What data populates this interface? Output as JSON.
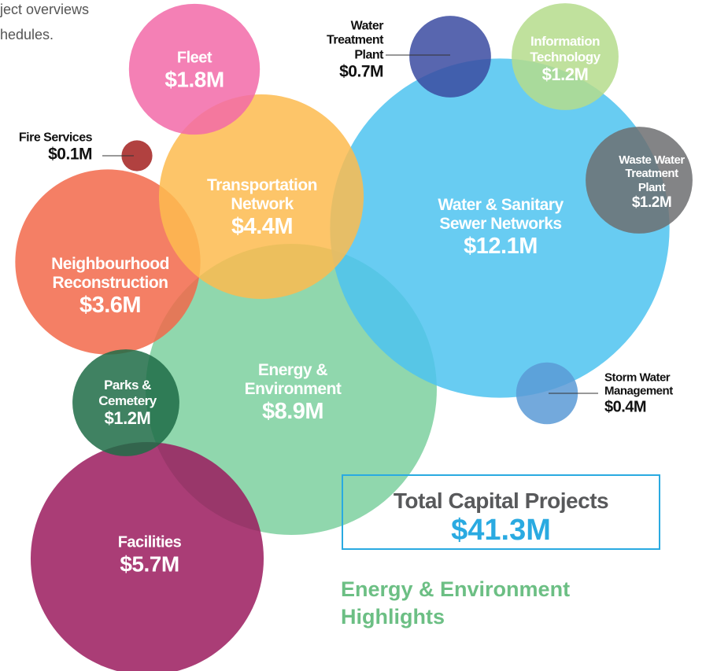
{
  "intro": [
    "ject overviews",
    "hedules."
  ],
  "chart_data": {
    "type": "bubble",
    "categories": [
      "Fleet",
      "Water Treatment Plant",
      "Information Technology",
      "Fire Services",
      "Transportation Network",
      "Water & Sanitary Sewer Networks",
      "Waste Water Treatment Plant",
      "Neighbourhood Reconstruction",
      "Energy & Environment",
      "Parks & Cemetery",
      "Storm Water Management",
      "Facilities"
    ],
    "values": [
      1.8,
      0.7,
      1.2,
      0.1,
      4.4,
      12.1,
      1.2,
      3.6,
      8.9,
      1.2,
      0.4,
      5.7
    ],
    "value_labels": [
      "$1.8M",
      "$0.7M",
      "$1.2M",
      "$0.1M",
      "$4.4M",
      "$12.1M",
      "$1.2M",
      "$3.6M",
      "$8.9M",
      "$1.2M",
      "$0.4M",
      "$5.7M"
    ],
    "colors": [
      "#f26aa8",
      "#3b4ba1",
      "#b5dc8c",
      "#a3201f",
      "#fdbb4f",
      "#4ec3f0",
      "#6d6e71",
      "#f2694a",
      "#7dd09f",
      "#1f6c47",
      "#5b9ad6",
      "#9b1b5e"
    ],
    "total": {
      "label": "Total Capital Projects",
      "value": 41.3,
      "value_label": "$41.3M"
    },
    "highlights_title": "Energy & Environment Highlights"
  }
}
